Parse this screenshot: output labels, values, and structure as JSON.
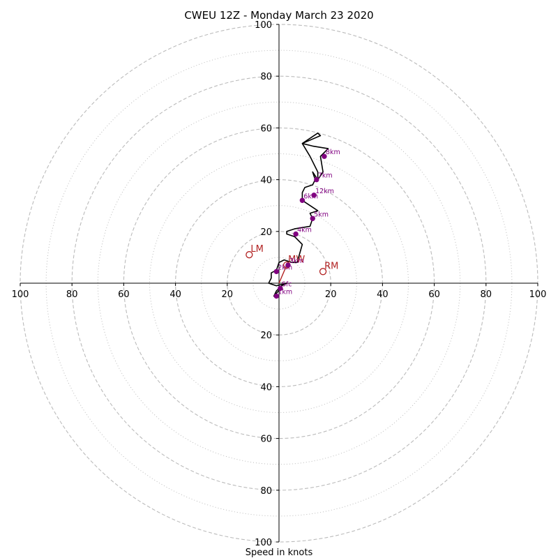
{
  "chart_data": {
    "type": "hodograph",
    "title": "CWEU 12Z - Monday March 23 2020",
    "xlabel": "Speed in knots",
    "max_speed": 100,
    "ring_major": [
      20,
      40,
      60,
      80,
      100
    ],
    "ring_minor": [
      10,
      30,
      50,
      70,
      90
    ],
    "x_tick_labels": [
      "100",
      "80",
      "60",
      "40",
      "20",
      "20",
      "40",
      "60",
      "80",
      "100"
    ],
    "y_tick_labels": [
      "100",
      "80",
      "60",
      "40",
      "20",
      "20",
      "40",
      "60",
      "80",
      "100"
    ],
    "x_tick_values": [
      -100,
      -80,
      -60,
      -40,
      -20,
      20,
      40,
      60,
      80,
      100
    ],
    "y_tick_values": [
      100,
      80,
      60,
      40,
      20,
      -20,
      -40,
      -60,
      -80,
      -100
    ],
    "hodo_trace": [
      [
        0.5,
        -2
      ],
      [
        -1,
        -4
      ],
      [
        -2,
        -5
      ],
      [
        -1,
        -3
      ],
      [
        1,
        -1
      ],
      [
        3,
        0
      ],
      [
        -1,
        -1
      ],
      [
        -4,
        0
      ],
      [
        -3,
        2
      ],
      [
        -3,
        4
      ],
      [
        -1,
        5
      ],
      [
        0,
        8
      ],
      [
        2,
        9
      ],
      [
        5,
        8
      ],
      [
        7,
        8
      ],
      [
        9,
        15
      ],
      [
        6,
        18
      ],
      [
        3,
        19
      ],
      [
        3,
        20
      ],
      [
        6,
        21
      ],
      [
        12,
        22
      ],
      [
        13,
        25
      ],
      [
        12,
        27
      ],
      [
        15,
        28
      ],
      [
        12,
        30
      ],
      [
        9,
        32
      ],
      [
        9,
        35
      ],
      [
        10,
        37
      ],
      [
        13,
        38
      ],
      [
        14,
        40
      ],
      [
        13,
        43
      ],
      [
        15,
        40
      ],
      [
        17,
        43
      ],
      [
        16,
        49
      ],
      [
        19,
        52
      ],
      [
        13,
        53
      ],
      [
        9,
        54
      ],
      [
        16,
        57
      ],
      [
        15,
        58
      ],
      [
        9,
        54
      ],
      [
        12,
        49
      ],
      [
        15,
        43
      ],
      [
        15,
        40
      ]
    ],
    "height_markers": [
      {
        "label": "Sfc",
        "u": 0.5,
        "v": -2
      },
      {
        "label": "1km",
        "u": -1,
        "v": -5
      },
      {
        "label": "2km",
        "u": -1,
        "v": 4.5
      },
      {
        "label": "3km",
        "u": 3.5,
        "v": 7
      },
      {
        "label": "4km",
        "u": 6.5,
        "v": 19
      },
      {
        "label": "5km",
        "u": 13,
        "v": 25
      },
      {
        "label": "6km",
        "u": 9,
        "v": 32
      },
      {
        "label": "7km",
        "u": 14.5,
        "v": 40
      },
      {
        "label": "8km",
        "u": 17.5,
        "v": 49
      },
      {
        "label": "12km",
        "u": 13.5,
        "v": 34
      }
    ],
    "motion_points": [
      {
        "label": "LM",
        "u": -11.5,
        "v": 11
      },
      {
        "label": "RM",
        "u": 17,
        "v": 4.5
      },
      {
        "label": "MW",
        "u": 3,
        "v": 7
      }
    ],
    "shear_vector": {
      "from": [
        0,
        0
      ],
      "to": [
        3,
        7
      ]
    },
    "colors": {
      "trace": "#000000",
      "marker": "#800080",
      "motion": "#b22222",
      "grid": "#bbbbbb"
    }
  }
}
